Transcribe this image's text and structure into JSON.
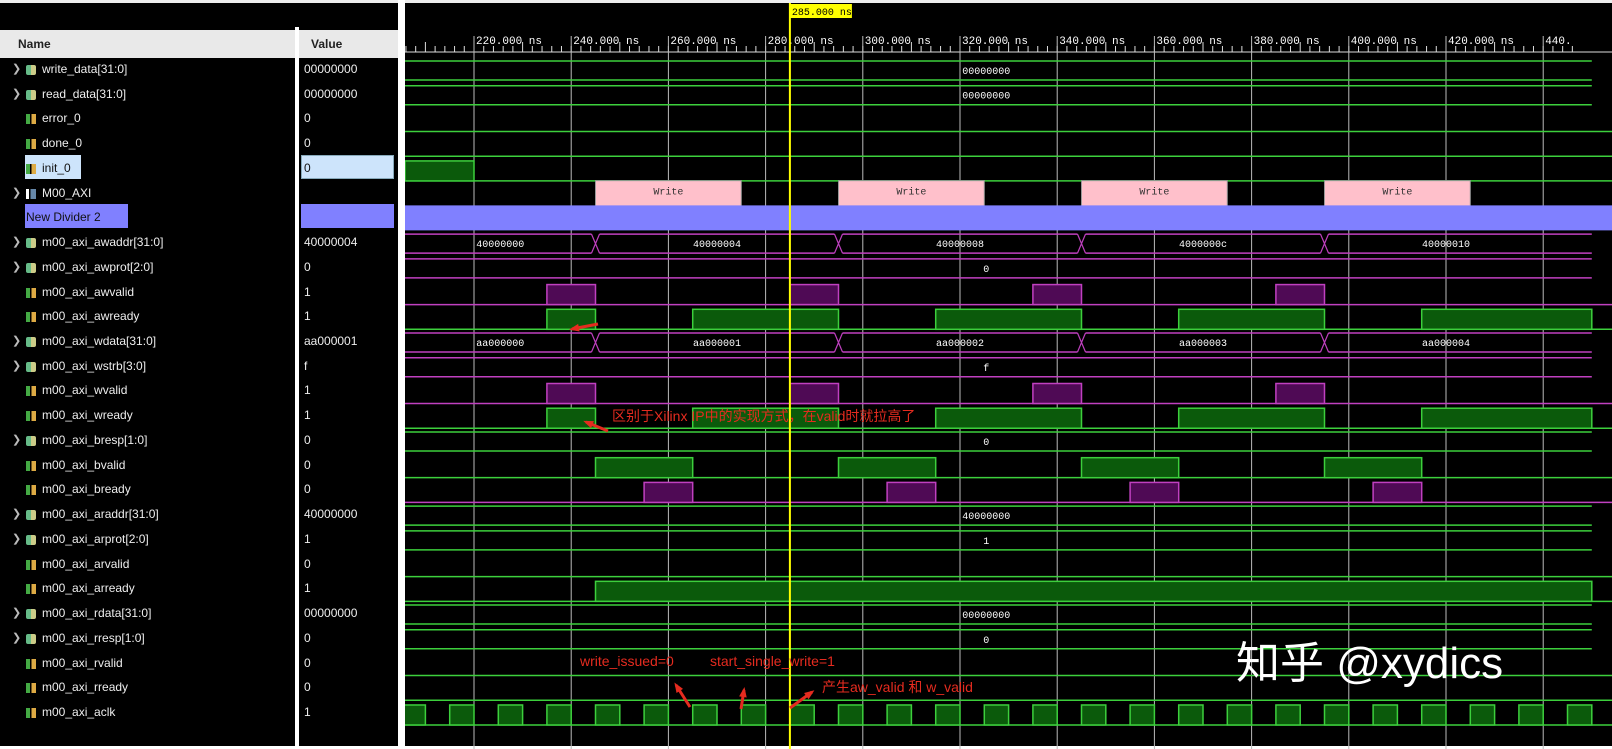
{
  "header": {
    "name_col": "Name",
    "value_col": "Value"
  },
  "timeline": {
    "unit": "ns",
    "view_range_ns": [
      205.8,
      445
    ],
    "major_ticks_ns": [
      220,
      240,
      260,
      280,
      300,
      320,
      340,
      360,
      380,
      400,
      420,
      440
    ],
    "tick_labels": [
      "220.000 ns",
      "240.000 ns",
      "260.000 ns",
      "280.000 ns",
      "300.000 ns",
      "320.000 ns",
      "340.000 ns",
      "360.000 ns",
      "380.000 ns",
      "400.000 ns",
      "420.000 ns",
      "440."
    ],
    "cursor": {
      "time_ns": 285,
      "label": "285.000 ns",
      "color": "#ffff00"
    }
  },
  "colors": {
    "green": "#3ccf3c",
    "green_fill": "#0b5a0b",
    "magenta": "#c040c0",
    "magenta_fill": "#4f0a55",
    "divider": "#8080ff",
    "txn": "#ffc0cb",
    "annotation": "#e52b1f"
  },
  "signals": [
    {
      "name": "write_data[31:0]",
      "value": "00000000",
      "kind": "bus",
      "icon": "bus-icon",
      "expandable": true,
      "color": "green",
      "segments": [
        {
          "from": 0,
          "to": 1000,
          "label": "00000000"
        }
      ]
    },
    {
      "name": "read_data[31:0]",
      "value": "00000000",
      "kind": "bus",
      "icon": "bus-icon",
      "expandable": true,
      "color": "green",
      "segments": [
        {
          "from": 0,
          "to": 1000,
          "label": "00000000"
        }
      ]
    },
    {
      "name": "error_0",
      "value": "0",
      "kind": "bit",
      "icon": "bit-icon",
      "color": "green",
      "high": []
    },
    {
      "name": "done_0",
      "value": "0",
      "kind": "bit",
      "icon": "bit-icon",
      "color": "green",
      "high": []
    },
    {
      "name": "init_0",
      "value": "0",
      "kind": "bit",
      "icon": "bit-icon",
      "color": "green",
      "selected": true,
      "high": [
        [
          0,
          220
        ]
      ]
    },
    {
      "name": "M00_AXI",
      "value": "",
      "kind": "group",
      "icon": "interface-icon",
      "expandable": true,
      "transactions": [
        {
          "from": 245,
          "to": 275,
          "label": "Write"
        },
        {
          "from": 295,
          "to": 325,
          "label": "Write"
        },
        {
          "from": 345,
          "to": 375,
          "label": "Write"
        },
        {
          "from": 395,
          "to": 425,
          "label": "Write"
        }
      ]
    },
    {
      "name": "New Divider 2",
      "value": "",
      "kind": "divider"
    },
    {
      "name": "m00_axi_awaddr[31:0]",
      "value": "40000004",
      "kind": "bus",
      "icon": "bus-icon",
      "expandable": true,
      "color": "magenta",
      "segments": [
        {
          "from": 0,
          "to": 245,
          "label": "40000000"
        },
        {
          "from": 245,
          "to": 295,
          "label": "40000004"
        },
        {
          "from": 295,
          "to": 345,
          "label": "40000008"
        },
        {
          "from": 345,
          "to": 395,
          "label": "4000000c"
        },
        {
          "from": 395,
          "to": 1000,
          "label": "40000010"
        }
      ]
    },
    {
      "name": "m00_axi_awprot[2:0]",
      "value": "0",
      "kind": "bus",
      "icon": "bus-icon",
      "expandable": true,
      "color": "magenta",
      "segments": [
        {
          "from": 0,
          "to": 1000,
          "label": "0"
        }
      ]
    },
    {
      "name": "m00_axi_awvalid",
      "value": "1",
      "kind": "bit",
      "icon": "bit-icon",
      "color": "magenta",
      "high": [
        [
          235,
          245
        ],
        [
          285,
          295
        ],
        [
          335,
          345
        ],
        [
          385,
          395
        ]
      ]
    },
    {
      "name": "m00_axi_awready",
      "value": "1",
      "kind": "bit",
      "icon": "bit-icon",
      "color": "green",
      "high": [
        [
          235,
          245
        ],
        [
          265,
          295
        ],
        [
          315,
          345
        ],
        [
          365,
          395
        ],
        [
          415,
          1000
        ]
      ]
    },
    {
      "name": "m00_axi_wdata[31:0]",
      "value": "aa000001",
      "kind": "bus",
      "icon": "bus-icon",
      "expandable": true,
      "color": "magenta",
      "segments": [
        {
          "from": 0,
          "to": 245,
          "label": "aa000000"
        },
        {
          "from": 245,
          "to": 295,
          "label": "aa000001"
        },
        {
          "from": 295,
          "to": 345,
          "label": "aa000002"
        },
        {
          "from": 345,
          "to": 395,
          "label": "aa000003"
        },
        {
          "from": 395,
          "to": 1000,
          "label": "aa000004"
        }
      ]
    },
    {
      "name": "m00_axi_wstrb[3:0]",
      "value": "f",
      "kind": "bus",
      "icon": "bus-icon",
      "expandable": true,
      "color": "magenta",
      "segments": [
        {
          "from": 0,
          "to": 1000,
          "label": "f"
        }
      ]
    },
    {
      "name": "m00_axi_wvalid",
      "value": "1",
      "kind": "bit",
      "icon": "bit-icon",
      "color": "magenta",
      "high": [
        [
          235,
          245
        ],
        [
          285,
          295
        ],
        [
          335,
          345
        ],
        [
          385,
          395
        ]
      ]
    },
    {
      "name": "m00_axi_wready",
      "value": "1",
      "kind": "bit",
      "icon": "bit-icon",
      "color": "green",
      "high": [
        [
          235,
          245
        ],
        [
          265,
          295
        ],
        [
          315,
          345
        ],
        [
          365,
          395
        ],
        [
          415,
          1000
        ]
      ]
    },
    {
      "name": "m00_axi_bresp[1:0]",
      "value": "0",
      "kind": "bus",
      "icon": "bus-icon",
      "expandable": true,
      "color": "green",
      "segments": [
        {
          "from": 0,
          "to": 1000,
          "label": "0"
        }
      ]
    },
    {
      "name": "m00_axi_bvalid",
      "value": "0",
      "kind": "bit",
      "icon": "bit-icon",
      "color": "green",
      "high": [
        [
          245,
          265
        ],
        [
          295,
          315
        ],
        [
          345,
          365
        ],
        [
          395,
          415
        ]
      ]
    },
    {
      "name": "m00_axi_bready",
      "value": "0",
      "kind": "bit",
      "icon": "bit-icon",
      "color": "magenta",
      "high": [
        [
          255,
          265
        ],
        [
          305,
          315
        ],
        [
          355,
          365
        ],
        [
          405,
          415
        ]
      ]
    },
    {
      "name": "m00_axi_araddr[31:0]",
      "value": "40000000",
      "kind": "bus",
      "icon": "bus-icon",
      "expandable": true,
      "color": "green",
      "segments": [
        {
          "from": 0,
          "to": 1000,
          "label": "40000000"
        }
      ]
    },
    {
      "name": "m00_axi_arprot[2:0]",
      "value": "1",
      "kind": "bus",
      "icon": "bus-icon",
      "expandable": true,
      "color": "green",
      "segments": [
        {
          "from": 0,
          "to": 1000,
          "label": "1"
        }
      ]
    },
    {
      "name": "m00_axi_arvalid",
      "value": "0",
      "kind": "bit",
      "icon": "bit-icon",
      "color": "green",
      "high": []
    },
    {
      "name": "m00_axi_arready",
      "value": "1",
      "kind": "bit",
      "icon": "bit-icon",
      "color": "green",
      "high": [
        [
          245,
          1000
        ]
      ]
    },
    {
      "name": "m00_axi_rdata[31:0]",
      "value": "00000000",
      "kind": "bus",
      "icon": "bus-icon",
      "expandable": true,
      "color": "green",
      "segments": [
        {
          "from": 0,
          "to": 1000,
          "label": "00000000"
        }
      ]
    },
    {
      "name": "m00_axi_rresp[1:0]",
      "value": "0",
      "kind": "bus",
      "icon": "bus-icon",
      "expandable": true,
      "color": "green",
      "segments": [
        {
          "from": 0,
          "to": 1000,
          "label": "0"
        }
      ]
    },
    {
      "name": "m00_axi_rvalid",
      "value": "0",
      "kind": "bit",
      "icon": "bit-icon",
      "color": "green",
      "high": []
    },
    {
      "name": "m00_axi_rready",
      "value": "0",
      "kind": "bit",
      "icon": "bit-icon",
      "color": "green",
      "high": []
    },
    {
      "name": "m00_axi_aclk",
      "value": "1",
      "kind": "clock",
      "icon": "bit-icon",
      "color": "green",
      "period_ns": 10,
      "first_rise_ns": 205
    }
  ],
  "annotations": {
    "wready_note": "区别于Xilinx IP中的实现方式，在valid时就拉高了",
    "write_issued": "write_issued=0",
    "start_single_write": "start_single_write=1",
    "valid_note": "产生aw_valid 和 w_valid"
  },
  "watermark": "知乎 @xydics"
}
